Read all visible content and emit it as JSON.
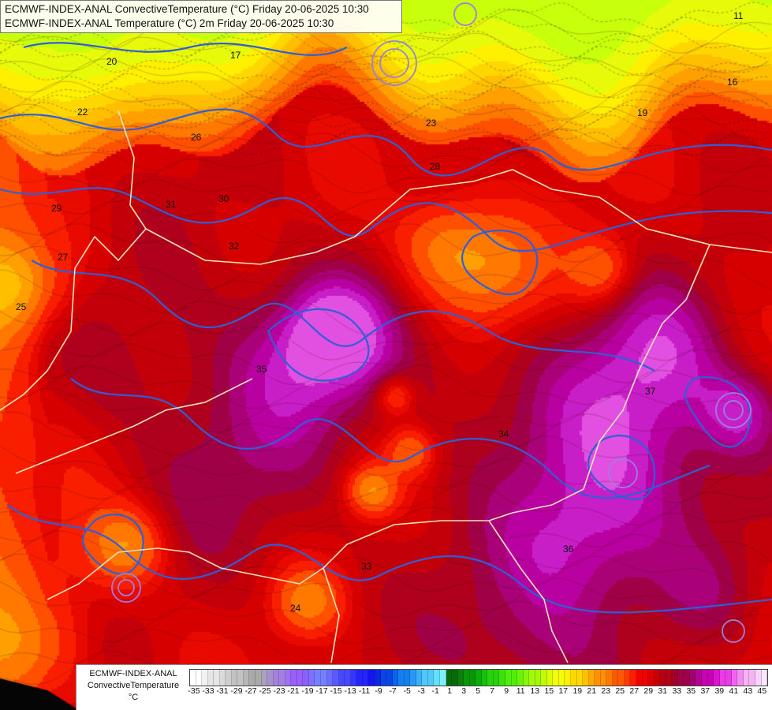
{
  "title": {
    "line1": "ECMWF-INDEX-ANAL ConvectiveTemperature (°C) Friday 20-06-2025 10:30",
    "line2": "ECMWF-INDEX-ANAL Temperature (°C) 2m Friday 20-06-2025 10:30"
  },
  "legend": {
    "label_line1": "ECMWF-INDEX-ANAL",
    "label_line2": "ConvectiveTemperature",
    "unit": "°C",
    "tick_labels": [
      "-35",
      "-33",
      "-31",
      "-29",
      "-27",
      "-25",
      "-23",
      "-21",
      "-19",
      "-17",
      "-15",
      "-13",
      "-11",
      "-9",
      "-7",
      "-5",
      "-3",
      "-1",
      "1",
      "3",
      "5",
      "7",
      "9",
      "11",
      "13",
      "15",
      "17",
      "19",
      "21",
      "23",
      "25",
      "27",
      "29",
      "31",
      "33",
      "35",
      "37",
      "39",
      "41",
      "43",
      "45"
    ],
    "colors": [
      "#ffffff",
      "#f2f2f2",
      "#e6e6e6",
      "#dadada",
      "#cecece",
      "#c2c2c2",
      "#b6b6b6",
      "#aaaaaa",
      "#a9a1bd",
      "#a891cf",
      "#a680e0",
      "#a070f0",
      "#9a60ff",
      "#8c60ff",
      "#7f70ff",
      "#7480ff",
      "#6a6cff",
      "#5a5aff",
      "#4848ff",
      "#3636ff",
      "#2424ff",
      "#1414f0",
      "#0a28e0",
      "#0a46e6",
      "#0a64ec",
      "#1480f0",
      "#2898f4",
      "#3cb0f8",
      "#50c8fa",
      "#64e0fc",
      "#80f0ff",
      "#0a6a0a",
      "#0a7f0a",
      "#0a960a",
      "#0aac0a",
      "#14c20a",
      "#28d20a",
      "#3ce00a",
      "#50ee0a",
      "#6cf20a",
      "#88f60a",
      "#a4f80a",
      "#c0fa0a",
      "#dcfc0a",
      "#f4fc0a",
      "#fff000",
      "#ffd800",
      "#ffc000",
      "#ffa800",
      "#ff9000",
      "#ff7800",
      "#ff5a00",
      "#ff3c00",
      "#ff1e00",
      "#f00000",
      "#dc0000",
      "#c80000",
      "#b40014",
      "#a00028",
      "#a0004a",
      "#a00070",
      "#b40096",
      "#c800b4",
      "#dc14d2",
      "#e83ce6",
      "#f064f0",
      "#f08cf0",
      "#f4b4f4",
      "#f8d2f8",
      "#fce6fc"
    ]
  },
  "map_labels": [
    {
      "text": "17",
      "key": "l17a"
    },
    {
      "text": "20",
      "key": "l20a"
    },
    {
      "text": "22",
      "key": "l22a"
    },
    {
      "text": "23",
      "key": "l23a"
    },
    {
      "text": "26",
      "key": "l26a"
    },
    {
      "text": "28",
      "key": "l28a"
    },
    {
      "text": "29",
      "key": "l29a"
    },
    {
      "text": "30",
      "key": "l30a"
    },
    {
      "text": "31",
      "key": "l31a"
    },
    {
      "text": "32",
      "key": "l32a"
    },
    {
      "text": "33",
      "key": "l33a"
    },
    {
      "text": "34",
      "key": "l34a"
    },
    {
      "text": "35",
      "key": "l35a"
    },
    {
      "text": "36",
      "key": "l36a"
    },
    {
      "text": "37",
      "key": "l37a"
    },
    {
      "text": "24",
      "key": "l24a"
    },
    {
      "text": "25",
      "key": "l25a"
    },
    {
      "text": "27",
      "key": "l27a"
    },
    {
      "text": "19",
      "key": "l19a"
    },
    {
      "text": "16",
      "key": "l16a"
    },
    {
      "text": "11",
      "key": "l11a"
    }
  ]
}
